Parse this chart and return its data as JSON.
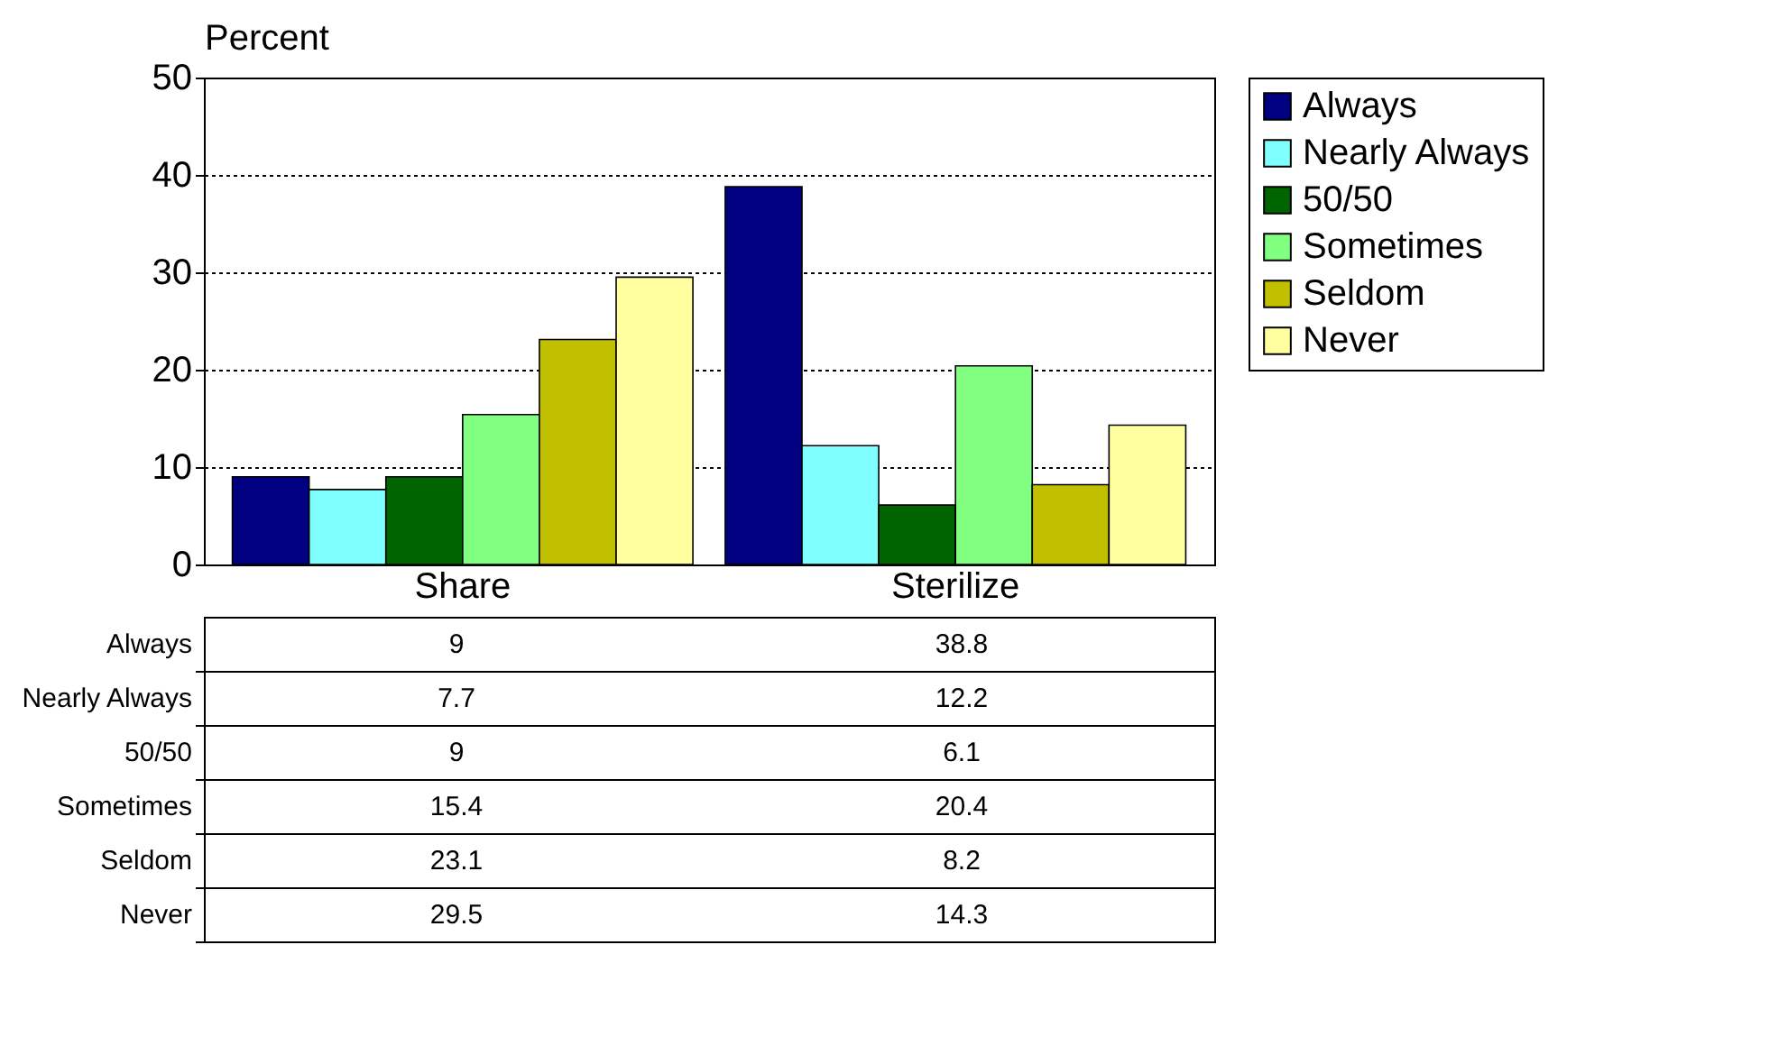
{
  "chart_data": {
    "type": "bar",
    "ylabel": "Percent",
    "categories": [
      "Share",
      "Sterilize"
    ],
    "series": [
      {
        "name": "Always",
        "color": "#000080",
        "values": [
          9,
          38.8
        ]
      },
      {
        "name": "Nearly Always",
        "color": "#80ffff",
        "values": [
          7.7,
          12.2
        ]
      },
      {
        "name": "50/50",
        "color": "#006400",
        "values": [
          9,
          6.1
        ]
      },
      {
        "name": "Sometimes",
        "color": "#80ff80",
        "values": [
          15.4,
          20.4
        ]
      },
      {
        "name": "Seldom",
        "color": "#c0c000",
        "values": [
          23.1,
          8.2
        ]
      },
      {
        "name": "Never",
        "color": "#ffffa0",
        "values": [
          29.5,
          14.3
        ]
      }
    ],
    "ylim": [
      0,
      50
    ],
    "yticks": [
      0,
      10,
      20,
      30,
      40,
      50
    ],
    "grid": "y",
    "legend": "right",
    "data_labels": true
  }
}
